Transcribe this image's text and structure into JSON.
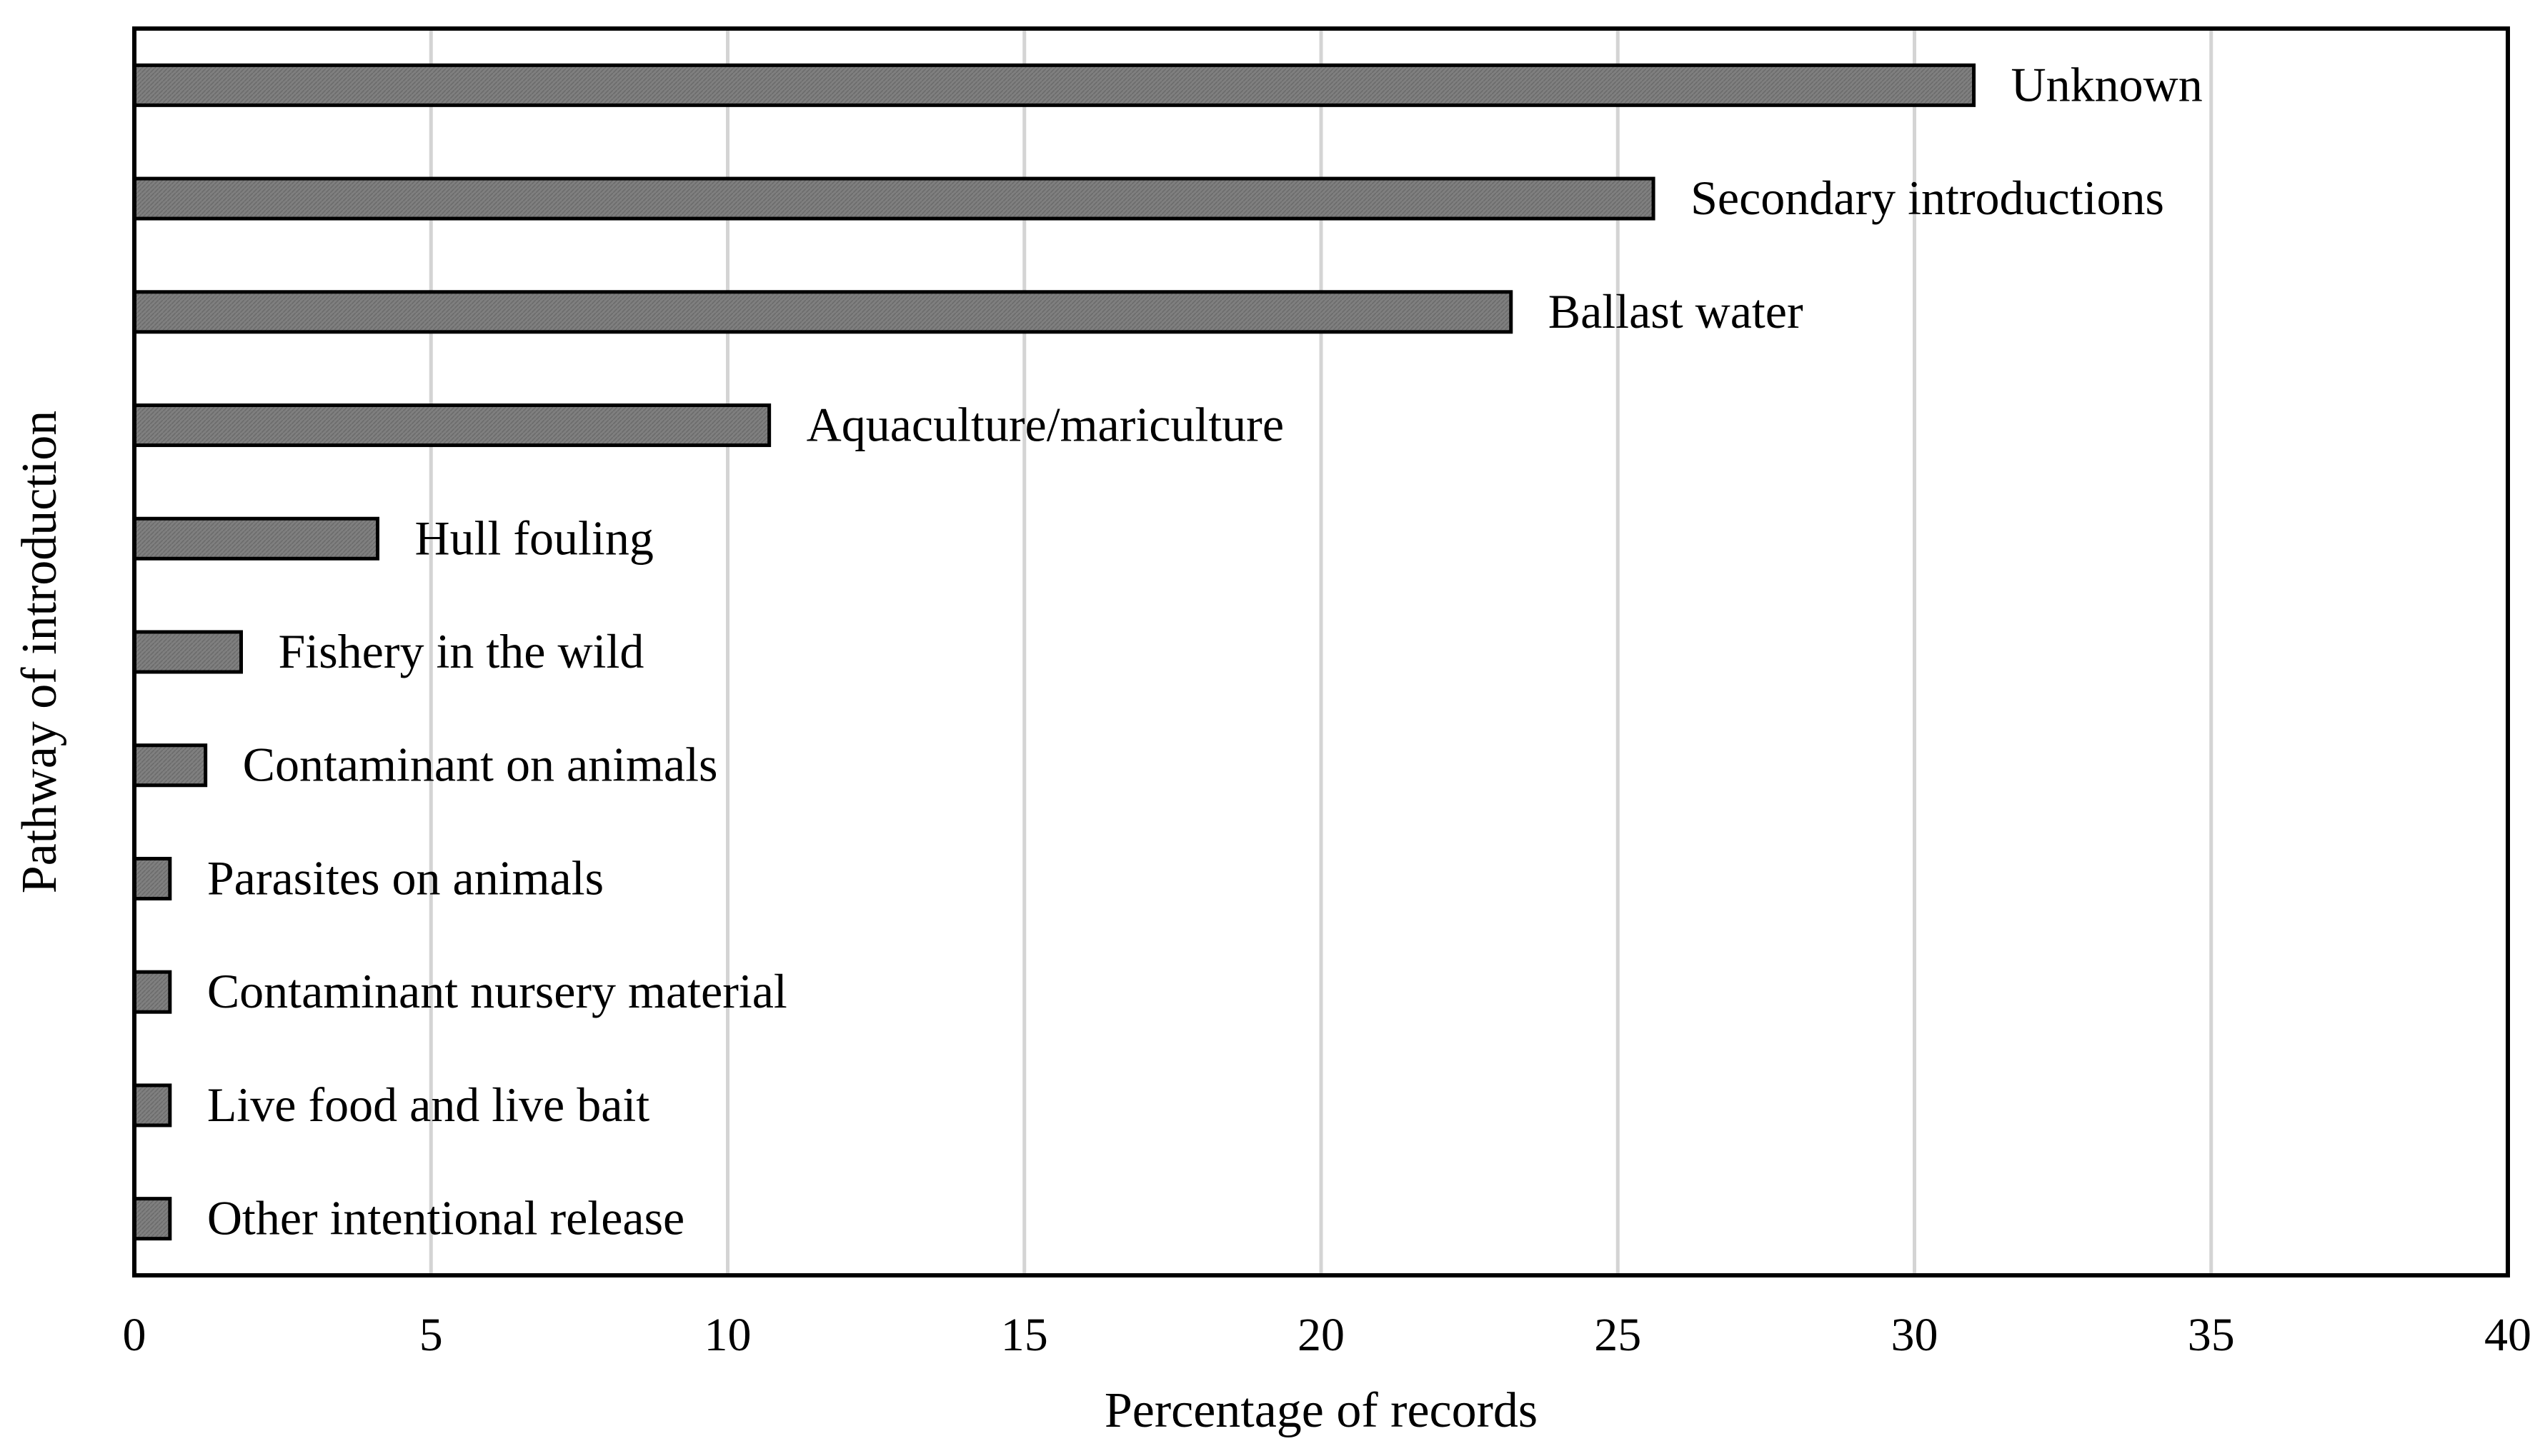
{
  "chart_data": {
    "type": "bar",
    "orientation": "horizontal",
    "title": "",
    "xlabel": "Percentage of records",
    "ylabel": "Pathway of introduction",
    "xlim": [
      0,
      40
    ],
    "xticks": [
      0,
      5,
      10,
      15,
      20,
      25,
      30,
      35,
      40
    ],
    "grid": "vertical",
    "legend": "none",
    "categories": [
      "Unknown",
      "Secondary introductions",
      "Ballast water",
      "Aquaculture/mariculture",
      "Hull fouling",
      "Fishery in the wild",
      "Contaminant on animals",
      "Parasites on animals",
      "Contaminant nursery material",
      "Live food and live bait",
      "Other intentional release"
    ],
    "values": [
      31.0,
      25.6,
      23.2,
      10.7,
      4.1,
      1.8,
      1.2,
      0.6,
      0.6,
      0.6,
      0.6
    ],
    "colors": {
      "bar_fill": "#7f7f7f",
      "bar_stroke": "#000000",
      "grid": "#d4d4d4",
      "frame": "#000000"
    }
  }
}
